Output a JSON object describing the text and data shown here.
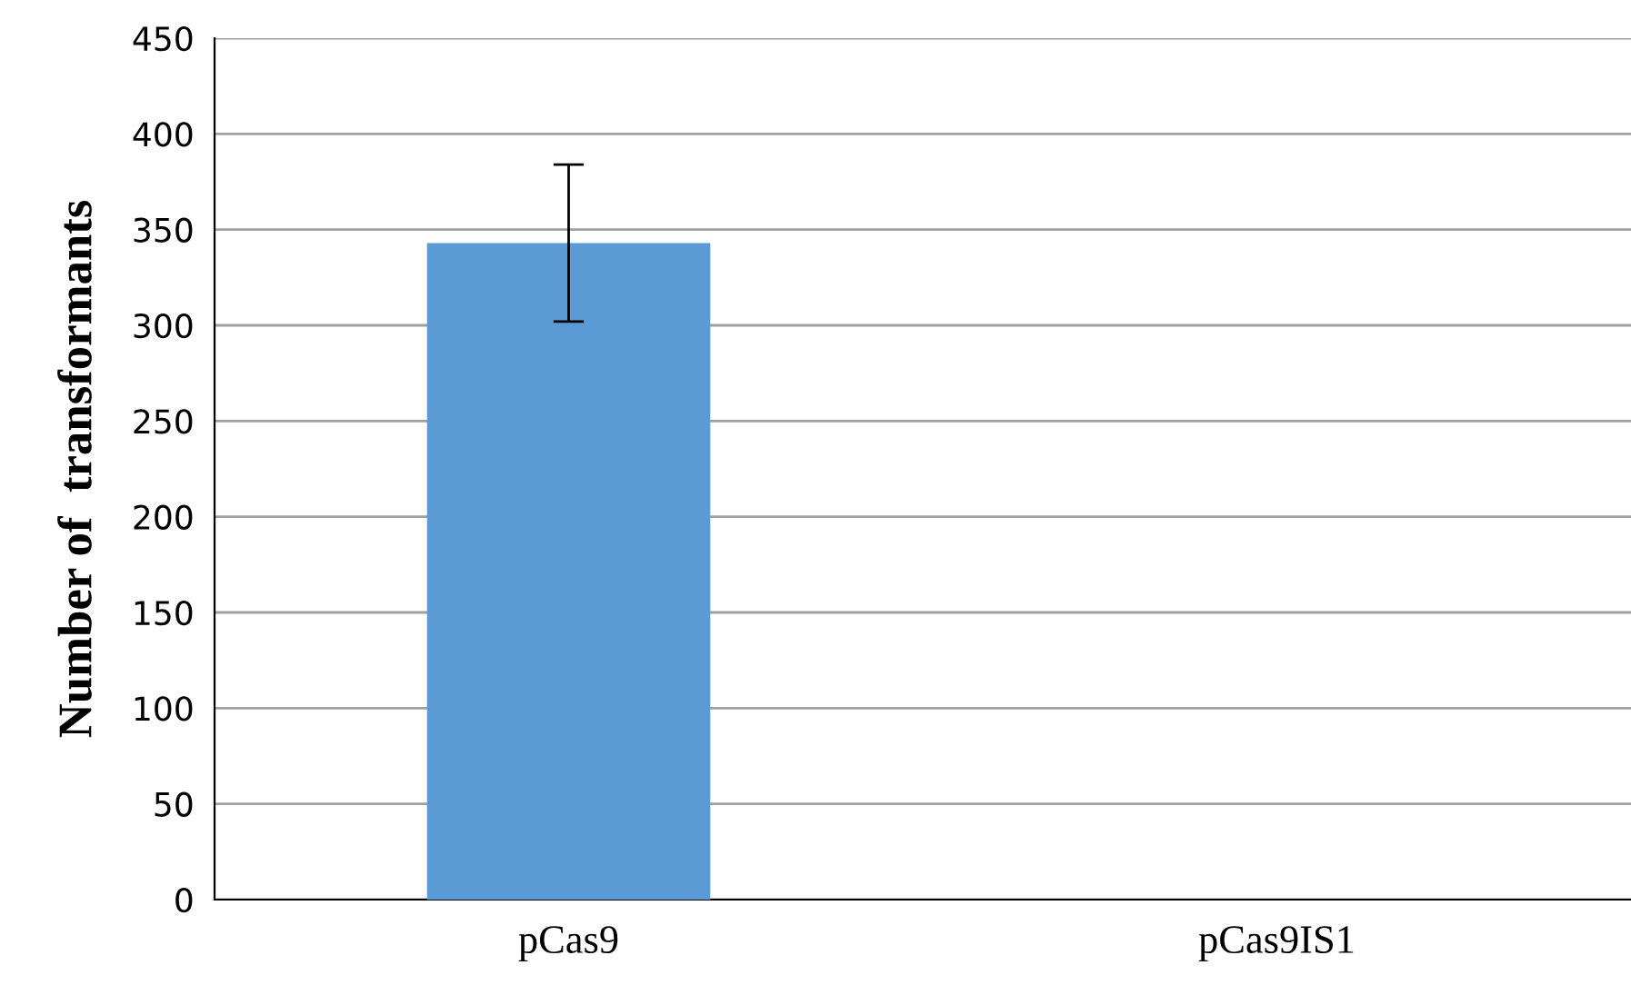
{
  "chart_data": {
    "type": "bar",
    "ylabel": "Number of  transformants",
    "categories": [
      "pCas9",
      "pCas9IS1"
    ],
    "values": [
      343,
      0
    ],
    "errors": [
      41,
      null
    ],
    "color": "#5b9bd5",
    "ylim": [
      0,
      450
    ],
    "yticks": [
      0,
      50,
      100,
      150,
      200,
      250,
      300,
      350,
      400,
      450
    ],
    "grid": "y",
    "legend": false
  }
}
